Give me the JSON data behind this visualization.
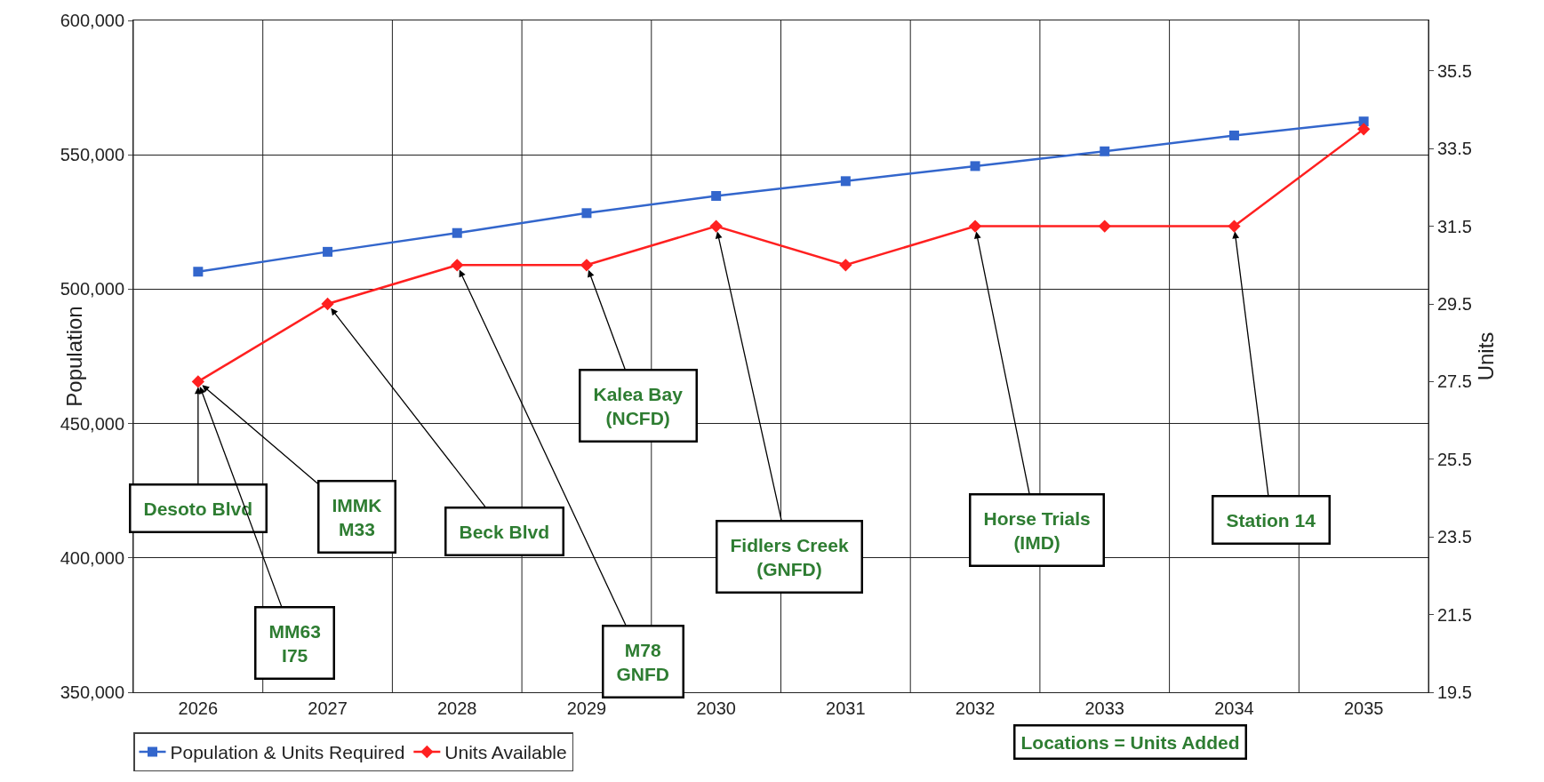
{
  "chart_data": {
    "type": "line",
    "xlabel": null,
    "ylabel": "Population",
    "y2label": "Units",
    "categories": [
      "2026",
      "2027",
      "2028",
      "2029",
      "2030",
      "2031",
      "2032",
      "2033",
      "2034",
      "2035"
    ],
    "series": [
      {
        "name": "Population & Units Required",
        "color": "#3366cc",
        "marker": "square",
        "values": [
          506500,
          513900,
          520900,
          528300,
          534700,
          540200,
          545800,
          551300,
          557200,
          562400
        ]
      },
      {
        "name": "Units Available",
        "color": "#ff2020",
        "marker": "diamond",
        "axis": "y2",
        "values": [
          27.5,
          29.5,
          30.5,
          30.5,
          31.5,
          30.5,
          31.5,
          31.5,
          31.5,
          34
        ]
      }
    ],
    "ylim": [
      350000,
      600000
    ],
    "yticks": [
      {
        "value": 350000,
        "label": "350,000"
      },
      {
        "value": 400000,
        "label": "400,000"
      },
      {
        "value": 450000,
        "label": "450,000"
      },
      {
        "value": 500000,
        "label": "500,000"
      },
      {
        "value": 550000,
        "label": "550,000"
      },
      {
        "value": 600000,
        "label": "600,000"
      }
    ],
    "y2lim": [
      19.5,
      36.8
    ],
    "y2ticks": [
      19.5,
      21.5,
      23.5,
      25.5,
      27.5,
      29.5,
      31.5,
      33.5,
      35.5
    ],
    "grid": true,
    "legend": "bottom left",
    "annotations": [
      {
        "text": "Desoto Blvd",
        "x": "2026",
        "y": 465600
      },
      {
        "text": "MM63\nI75",
        "x": "2026",
        "y": 465600
      },
      {
        "text": "IMMK\nM33",
        "x": "2026",
        "y": 465600
      },
      {
        "text": "Beck Blvd",
        "x": "2027",
        "y": 494500
      },
      {
        "text": "M78\nGNFD",
        "x": "2028",
        "y": 509000
      },
      {
        "text": "Kalea Bay\n(NCFD)",
        "x": "2029",
        "y": 509000
      },
      {
        "text": "Fidlers Creek\n(GNFD)",
        "x": "2030",
        "y": 523400
      },
      {
        "text": "Horse Trials\n(IMD)",
        "x": "2032",
        "y": 523400
      },
      {
        "text": "Station 14",
        "x": "2034",
        "y": 523400
      },
      "Locations = Units Added"
    ]
  }
}
